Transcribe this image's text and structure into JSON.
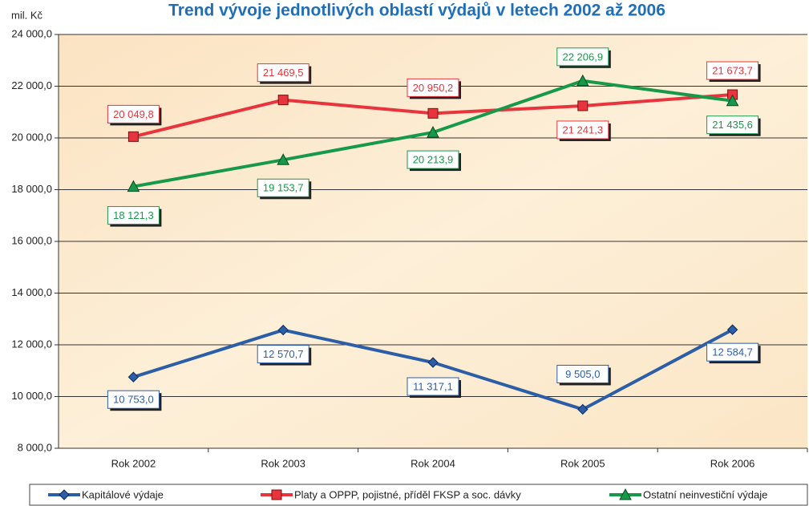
{
  "chart_data": {
    "type": "line",
    "title": "Trend vývoje jednotlivých oblastí výdajů v letech 2002 až 2006",
    "y_label": "mil. Kč",
    "categories": [
      "Rok 2002",
      "Rok 2003",
      "Rok 2004",
      "Rok 2005",
      "Rok 2006"
    ],
    "ylim": [
      8000,
      24000
    ],
    "yticks": [
      {
        "value": 8000,
        "label": "8 000,0"
      },
      {
        "value": 10000,
        "label": "10 000,0"
      },
      {
        "value": 12000,
        "label": "12 000,0"
      },
      {
        "value": 14000,
        "label": "14 000,0"
      },
      {
        "value": 16000,
        "label": "16 000,0"
      },
      {
        "value": 18000,
        "label": "18 000,0"
      },
      {
        "value": 20000,
        "label": "20 000,0"
      },
      {
        "value": 22000,
        "label": "22 000,0"
      },
      {
        "value": 24000,
        "label": "24 000,0"
      }
    ],
    "grid": true,
    "legend": "bottom",
    "series": [
      {
        "name": "Kapitálové výdaje",
        "color": "#2c5ea8",
        "marker": "diamond",
        "values": [
          10753.0,
          12570.7,
          11317.1,
          9505.0,
          12584.7
        ],
        "value_labels": [
          "10 753,0",
          "12 570,7",
          "11 317,1",
          "9 505,0",
          "12 584,7"
        ]
      },
      {
        "name": "Platy a OPPP, pojistné, příděl FKSP a soc. dávky",
        "color": "#e8343c",
        "marker": "square",
        "values": [
          20049.8,
          21469.5,
          20950.2,
          21241.3,
          21673.7
        ],
        "value_labels": [
          "20 049,8",
          "21 469,5",
          "20 950,2",
          "21 241,3",
          "21 673,7"
        ]
      },
      {
        "name": "Ostatní neinvestiční výdaje",
        "color": "#17994a",
        "marker": "triangle",
        "values": [
          18121.3,
          19153.7,
          20213.9,
          22206.9,
          21435.6
        ],
        "value_labels": [
          "18 121,3",
          "19 153,7",
          "20 213,9",
          "22 206,9",
          "21 435,6"
        ]
      }
    ]
  }
}
